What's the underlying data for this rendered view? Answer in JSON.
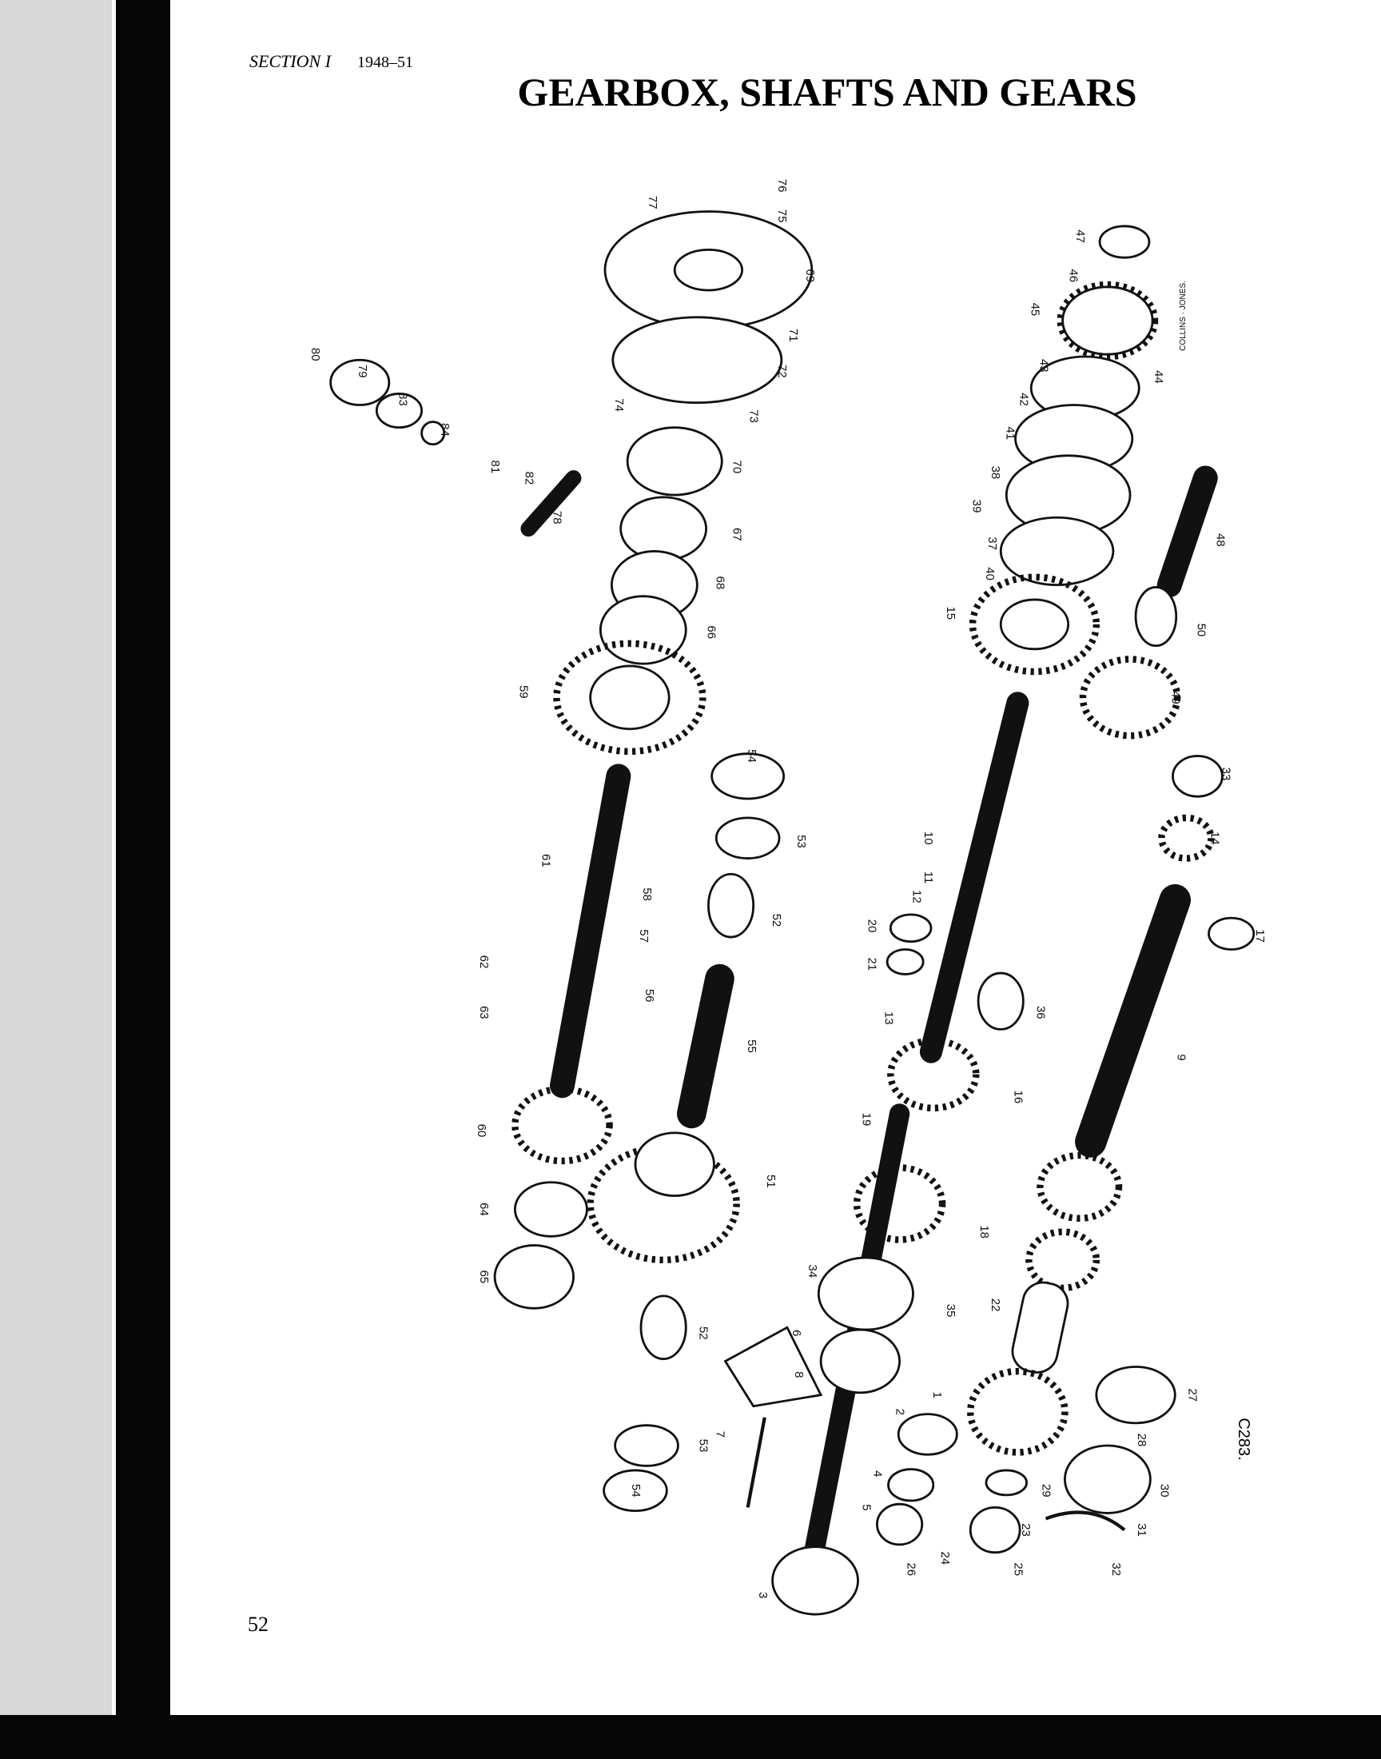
{
  "header": {
    "section": "SECTION I",
    "years": "1948–51"
  },
  "title": "GEARBOX, SHAFTS AND GEARS",
  "parts": {
    "labels": [
      "77",
      "76",
      "75",
      "69",
      "71",
      "72",
      "73",
      "74",
      "70",
      "67",
      "68",
      "66",
      "59",
      "80",
      "79",
      "83",
      "84",
      "81",
      "82",
      "78",
      "54",
      "53",
      "52",
      "58",
      "57",
      "56",
      "55",
      "61",
      "62",
      "63",
      "60",
      "64",
      "65",
      "51",
      "52",
      "53",
      "54",
      "7",
      "6",
      "8",
      "34",
      "35",
      "19",
      "13",
      "16",
      "18",
      "22",
      "1",
      "2",
      "4",
      "5",
      "3",
      "26",
      "24",
      "25",
      "23",
      "29",
      "30",
      "31",
      "32",
      "28",
      "27",
      "10",
      "12",
      "11",
      "20",
      "21",
      "36",
      "9",
      "17",
      "14",
      "33",
      "49",
      "50",
      "48",
      "15",
      "40",
      "37",
      "39",
      "38",
      "41",
      "42",
      "43",
      "44",
      "45",
      "46",
      "47"
    ]
  },
  "credit": "COLLINS · JONES.",
  "figure_code": "C283.",
  "page_number": "52"
}
